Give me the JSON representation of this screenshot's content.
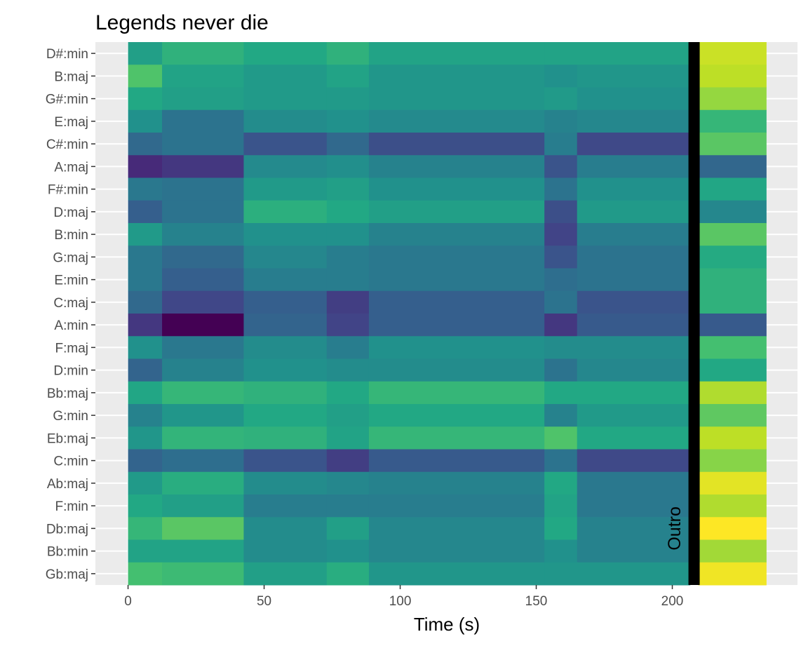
{
  "chart_data": {
    "type": "heatmap",
    "title": "Legends never die",
    "xlabel": "Time (s)",
    "ylabel": "",
    "xlim": [
      -12,
      246
    ],
    "x_ticks": [
      0,
      50,
      100,
      150,
      200
    ],
    "grid": true,
    "colormap": "viridis",
    "y_categories": [
      "D#:min",
      "B:maj",
      "G#:min",
      "E:maj",
      "C#:min",
      "A:maj",
      "F#:min",
      "D:maj",
      "B:min",
      "G:maj",
      "E:min",
      "C:maj",
      "A:min",
      "F:maj",
      "D:min",
      "Bb:maj",
      "G:min",
      "Eb:maj",
      "C:min",
      "Ab:maj",
      "F:min",
      "Db:maj",
      "Bb:min",
      "Gb:maj"
    ],
    "x_segments": [
      [
        0,
        12.5
      ],
      [
        12.5,
        42.5
      ],
      [
        42.5,
        73
      ],
      [
        73,
        88.5
      ],
      [
        88.5,
        153
      ],
      [
        153,
        165
      ],
      [
        165,
        206.5
      ],
      [
        209.5,
        234.5
      ]
    ],
    "values": [
      [
        0.56,
        0.64,
        0.6,
        0.64,
        0.58,
        0.58,
        0.58,
        0.92
      ],
      [
        0.72,
        0.58,
        0.54,
        0.58,
        0.52,
        0.5,
        0.52,
        0.9
      ],
      [
        0.6,
        0.56,
        0.54,
        0.54,
        0.52,
        0.54,
        0.5,
        0.84
      ],
      [
        0.5,
        0.38,
        0.48,
        0.5,
        0.47,
        0.44,
        0.46,
        0.66
      ],
      [
        0.34,
        0.38,
        0.26,
        0.34,
        0.24,
        0.42,
        0.22,
        0.74
      ],
      [
        0.12,
        0.16,
        0.47,
        0.49,
        0.44,
        0.26,
        0.42,
        0.33
      ],
      [
        0.4,
        0.38,
        0.54,
        0.56,
        0.5,
        0.38,
        0.5,
        0.59
      ],
      [
        0.3,
        0.38,
        0.63,
        0.6,
        0.56,
        0.24,
        0.54,
        0.46
      ],
      [
        0.54,
        0.44,
        0.5,
        0.5,
        0.44,
        0.2,
        0.42,
        0.74
      ],
      [
        0.4,
        0.34,
        0.46,
        0.42,
        0.4,
        0.26,
        0.38,
        0.61
      ],
      [
        0.4,
        0.3,
        0.42,
        0.42,
        0.4,
        0.36,
        0.38,
        0.64
      ],
      [
        0.34,
        0.21,
        0.3,
        0.18,
        0.3,
        0.38,
        0.26,
        0.64
      ],
      [
        0.16,
        0.0,
        0.32,
        0.2,
        0.3,
        0.16,
        0.28,
        0.28
      ],
      [
        0.5,
        0.4,
        0.48,
        0.42,
        0.5,
        0.48,
        0.48,
        0.7
      ],
      [
        0.32,
        0.44,
        0.5,
        0.48,
        0.48,
        0.38,
        0.46,
        0.6
      ],
      [
        0.59,
        0.66,
        0.64,
        0.6,
        0.66,
        0.6,
        0.6,
        0.88
      ],
      [
        0.44,
        0.52,
        0.6,
        0.56,
        0.6,
        0.44,
        0.54,
        0.75
      ],
      [
        0.52,
        0.65,
        0.64,
        0.58,
        0.66,
        0.72,
        0.6,
        0.9
      ],
      [
        0.32,
        0.36,
        0.26,
        0.18,
        0.28,
        0.38,
        0.22,
        0.82
      ],
      [
        0.54,
        0.62,
        0.48,
        0.46,
        0.44,
        0.6,
        0.4,
        0.96
      ],
      [
        0.6,
        0.56,
        0.42,
        0.42,
        0.42,
        0.58,
        0.4,
        0.88
      ],
      [
        0.66,
        0.74,
        0.48,
        0.56,
        0.46,
        0.6,
        0.44,
        1.0
      ],
      [
        0.58,
        0.58,
        0.48,
        0.5,
        0.46,
        0.5,
        0.44,
        0.86
      ],
      [
        0.7,
        0.68,
        0.56,
        0.62,
        0.52,
        0.52,
        0.52,
        0.98
      ]
    ],
    "vline": {
      "x": 208,
      "color": "#000000"
    },
    "annotations": [
      {
        "text": "Outro",
        "x": 203,
        "y_category": "Db:maj",
        "rotation": -90
      }
    ]
  }
}
